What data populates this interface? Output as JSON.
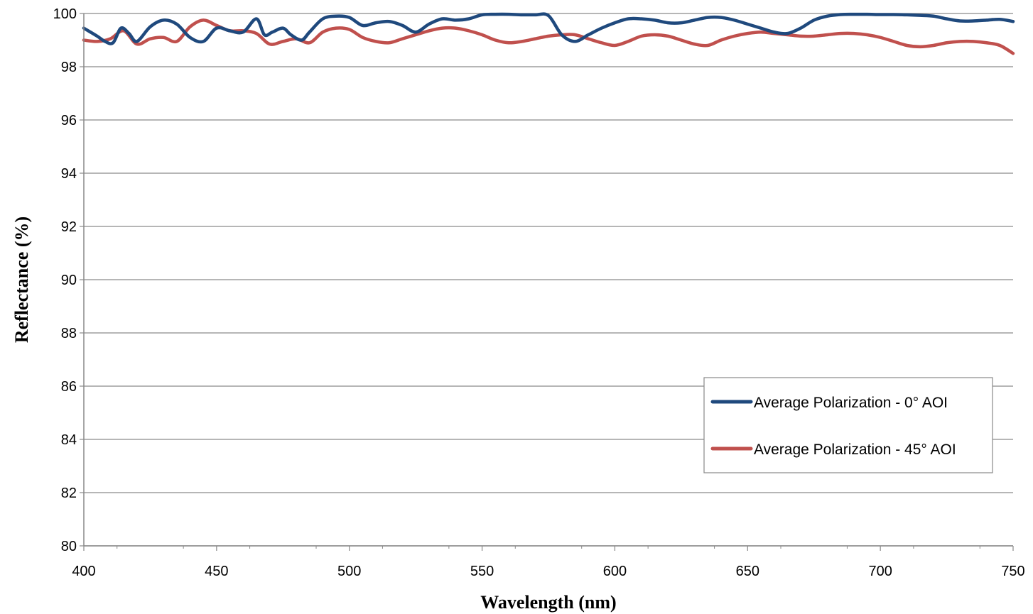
{
  "chart_data": {
    "type": "line",
    "title": "",
    "xlabel": "Wavelength (nm)",
    "ylabel": "Reflectance (%)",
    "xlim": [
      400,
      750
    ],
    "ylim": [
      80,
      100
    ],
    "x_ticks": [
      "400",
      "450",
      "500",
      "550",
      "600",
      "650",
      "700",
      "750"
    ],
    "y_ticks": [
      "80",
      "82",
      "84",
      "86",
      "88",
      "90",
      "92",
      "94",
      "96",
      "98",
      "100"
    ],
    "x_minor_step": 12.5,
    "grid": "horizontal",
    "legend_position": "lower-right",
    "series": [
      {
        "name": "Average Polarization - 0° AOI",
        "color": "#1F497D",
        "x": [
          400,
          405,
          408,
          411,
          414,
          417,
          420,
          425,
          430,
          435,
          440,
          445,
          450,
          455,
          460,
          465,
          468,
          471,
          475,
          478,
          482,
          485,
          490,
          495,
          500,
          505,
          510,
          515,
          520,
          525,
          530,
          535,
          540,
          545,
          550,
          555,
          560,
          565,
          570,
          575,
          580,
          585,
          590,
          595,
          600,
          605,
          610,
          615,
          620,
          625,
          630,
          635,
          640,
          645,
          650,
          655,
          660,
          665,
          670,
          675,
          680,
          685,
          690,
          695,
          700,
          705,
          710,
          715,
          720,
          725,
          730,
          735,
          740,
          745,
          750
        ],
        "y": [
          99.45,
          99.15,
          98.95,
          98.9,
          99.45,
          99.25,
          98.95,
          99.5,
          99.75,
          99.6,
          99.1,
          98.95,
          99.45,
          99.35,
          99.3,
          99.8,
          99.2,
          99.3,
          99.45,
          99.2,
          99.0,
          99.3,
          99.8,
          99.9,
          99.85,
          99.55,
          99.65,
          99.7,
          99.55,
          99.3,
          99.6,
          99.8,
          99.75,
          99.8,
          99.95,
          99.97,
          99.97,
          99.95,
          99.95,
          99.92,
          99.2,
          98.95,
          99.2,
          99.45,
          99.65,
          99.8,
          99.8,
          99.75,
          99.65,
          99.65,
          99.75,
          99.85,
          99.85,
          99.75,
          99.6,
          99.45,
          99.3,
          99.25,
          99.45,
          99.75,
          99.9,
          99.96,
          99.97,
          99.97,
          99.96,
          99.96,
          99.95,
          99.93,
          99.9,
          99.8,
          99.72,
          99.72,
          99.75,
          99.78,
          99.7
        ]
      },
      {
        "name": "Average Polarization - 45° AOI",
        "color": "#C0504D",
        "x": [
          400,
          405,
          410,
          415,
          420,
          425,
          430,
          435,
          440,
          445,
          450,
          455,
          460,
          465,
          470,
          475,
          480,
          485,
          490,
          495,
          500,
          505,
          510,
          515,
          520,
          525,
          530,
          535,
          540,
          545,
          550,
          555,
          560,
          565,
          570,
          575,
          580,
          585,
          590,
          595,
          600,
          605,
          610,
          615,
          620,
          625,
          630,
          635,
          640,
          645,
          650,
          655,
          660,
          665,
          670,
          675,
          680,
          685,
          690,
          695,
          700,
          705,
          710,
          715,
          720,
          725,
          730,
          735,
          740,
          745,
          750
        ],
        "y": [
          99.0,
          98.95,
          99.05,
          99.35,
          98.85,
          99.05,
          99.1,
          98.95,
          99.5,
          99.75,
          99.55,
          99.35,
          99.35,
          99.25,
          98.85,
          98.95,
          99.05,
          98.9,
          99.3,
          99.45,
          99.4,
          99.1,
          98.95,
          98.9,
          99.05,
          99.2,
          99.35,
          99.45,
          99.45,
          99.35,
          99.2,
          99.0,
          98.9,
          98.95,
          99.05,
          99.15,
          99.2,
          99.2,
          99.05,
          98.9,
          98.8,
          98.95,
          99.15,
          99.2,
          99.15,
          99.0,
          98.85,
          98.8,
          99.0,
          99.15,
          99.25,
          99.3,
          99.25,
          99.2,
          99.15,
          99.15,
          99.2,
          99.25,
          99.25,
          99.2,
          99.1,
          98.95,
          98.8,
          98.75,
          98.8,
          98.9,
          98.95,
          98.95,
          98.9,
          98.8,
          98.5
        ]
      }
    ]
  }
}
